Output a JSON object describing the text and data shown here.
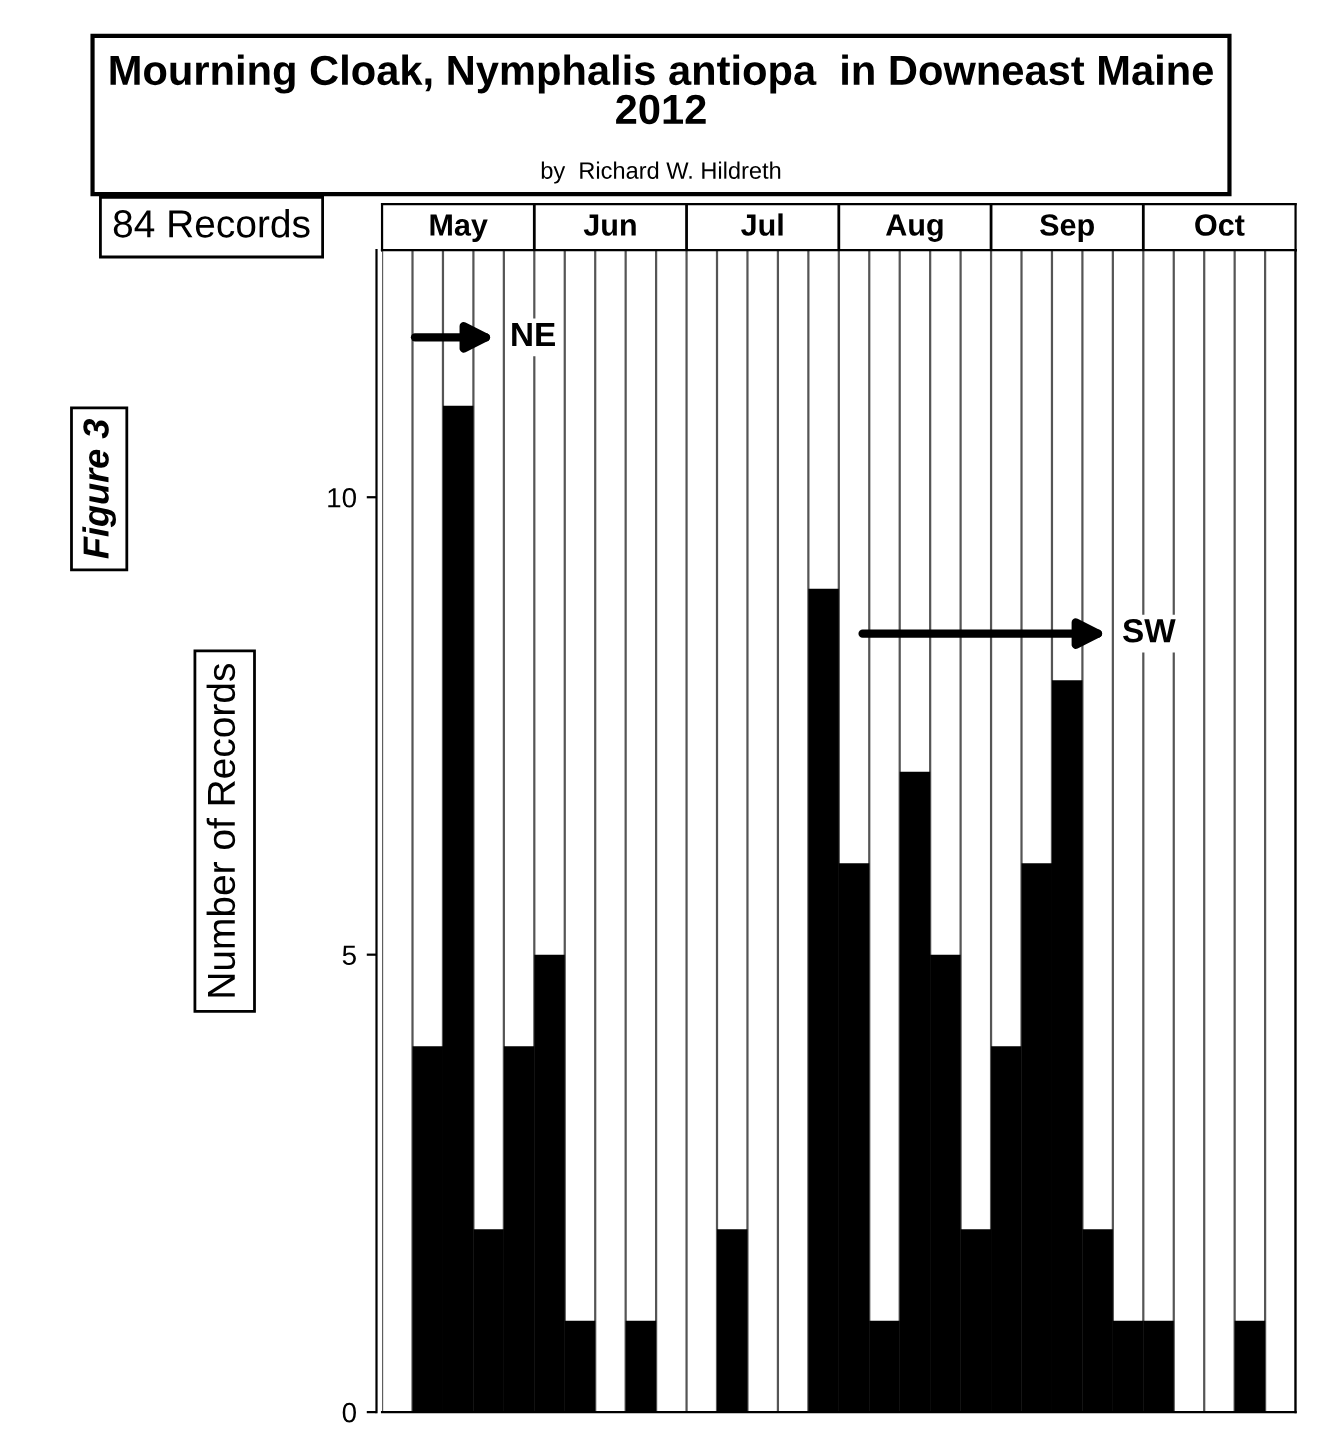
{
  "chart_data": {
    "type": "bar",
    "title": "Mourning Cloak, Nymphalis antiopa  in Downeast Maine\n2012",
    "subtitle": "by  Richard W. Hildreth",
    "ylabel": "Number of Records",
    "categories": [
      null,
      null,
      "May",
      null,
      null,
      null,
      null,
      "Jun",
      null,
      null,
      null,
      null,
      "Jul",
      null,
      null,
      null,
      null,
      "Aug",
      null,
      null,
      null,
      null,
      "Sep",
      null,
      null,
      null,
      null,
      "Oct",
      null,
      null
    ],
    "values": [
      0,
      4,
      11,
      2,
      4,
      5,
      1,
      0,
      1,
      0,
      0,
      2,
      0,
      0,
      9,
      6,
      1,
      7,
      5,
      2,
      4,
      6,
      8,
      2,
      1,
      1,
      0,
      0,
      1,
      0
    ],
    "color": "#000000",
    "ylim": [
      0,
      12.7
    ],
    "yticks": [
      0,
      5,
      10
    ],
    "grid": "x",
    "annotations": [
      "84 Records",
      "Figure 3",
      "NE",
      "SW"
    ]
  }
}
